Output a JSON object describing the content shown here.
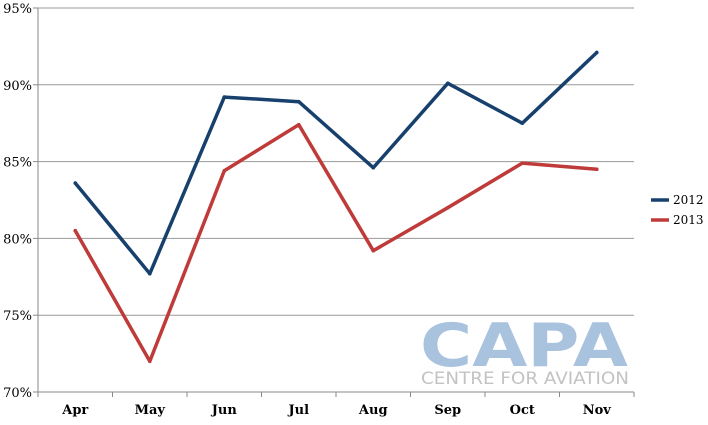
{
  "chart_data": {
    "type": "line",
    "categories": [
      "Apr",
      "May",
      "Jun",
      "Jul",
      "Aug",
      "Sep",
      "Oct",
      "Nov"
    ],
    "series": [
      {
        "name": "2012",
        "color": "#17406d",
        "values": [
          83.6,
          77.7,
          89.2,
          88.9,
          84.6,
          90.1,
          87.5,
          92.1
        ]
      },
      {
        "name": "2013",
        "color": "#bf3b3a",
        "values": [
          80.5,
          72.0,
          84.4,
          87.4,
          79.2,
          82.0,
          84.9,
          84.5
        ]
      }
    ],
    "ylim": [
      70,
      95
    ],
    "yticks": [
      70,
      75,
      80,
      85,
      90,
      95
    ],
    "ytick_labels": [
      "70%",
      "75%",
      "80%",
      "85%",
      "90%",
      "95%"
    ],
    "grid": true,
    "legend_position": "right",
    "title": "",
    "xlabel": "",
    "ylabel": ""
  },
  "watermark": {
    "brand": "CAPA",
    "tagline": "CENTRE FOR AVIATION"
  }
}
